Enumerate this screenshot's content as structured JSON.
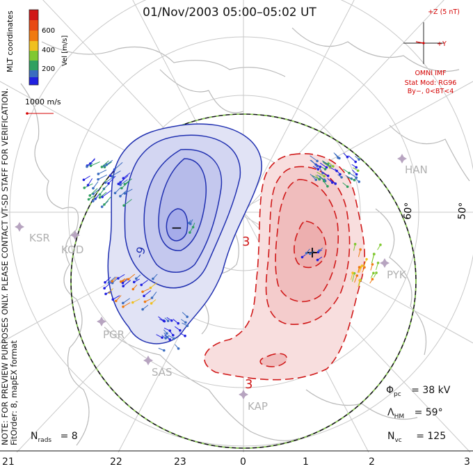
{
  "title": "01/Nov/2003 05:00–05:02 UT",
  "side_note": {
    "line1": "NOTE: FOR PREVIEW PURPOSES ONLY. PLEASE CONTACT VT-SD STAFF FOR VERIFICATION.",
    "line2": "FitOrder: 8, mapEX format"
  },
  "colorbar": {
    "coords_label": "MLT coordinates",
    "units_label": "Vel [m/s]",
    "ticks": [
      "600",
      "400",
      "200"
    ],
    "colors": [
      "#d01818",
      "#f07a10",
      "#f0c020",
      "#80c830",
      "#30a060",
      "#3a6cc0",
      "#2020e0"
    ]
  },
  "scale_vector": {
    "label": "1000 m/s",
    "color": "#d40000"
  },
  "imf": {
    "z_label": "+Z (5 nT)",
    "y_label": "+Y",
    "source": "OMNI IMF",
    "stat_mod": "Stat Mod: RG96",
    "condition": "By−, 0<BT<4",
    "color": "#d40000"
  },
  "stations": [
    "HAN",
    "KSR",
    "KOD",
    "PYK",
    "PGR",
    "SAS",
    "KAP"
  ],
  "lat_labels": [
    "60°",
    "50°"
  ],
  "potential_labels": {
    "negative": "-9",
    "positive_top": "3",
    "positive_bottom": "3"
  },
  "polar_cap_potential": {
    "label": "Φ",
    "subscript": "pc",
    "value": "= 38 kV"
  },
  "hm_boundary": {
    "label": "Λ",
    "subscript": "HM",
    "value": "= 59°"
  },
  "n_vectors": {
    "label": "N",
    "subscript": "vc",
    "value": "= 125"
  },
  "n_radars": {
    "label": "N",
    "subscript": "rads",
    "value": "= 8"
  },
  "mlt_ticks": [
    "21",
    "22",
    "23",
    "0",
    "1",
    "2",
    "3"
  ],
  "focus_markers": {
    "minimum": "−",
    "maximum": "+"
  },
  "colors": {
    "negative_fill": "#c8cdf0",
    "negative_line": "#1f2fb0",
    "positive_fill": "#f6caca",
    "positive_line": "#d01818",
    "coast": "#b8b8b8",
    "grid": "#c8c8c8",
    "station": "#b7a4c0"
  }
}
